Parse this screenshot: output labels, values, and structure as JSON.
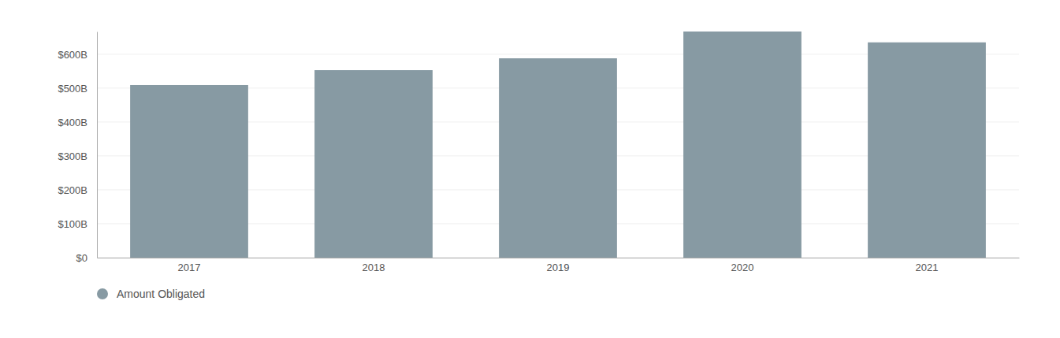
{
  "chart_data": {
    "type": "bar",
    "categories": [
      "2017",
      "2018",
      "2019",
      "2020",
      "2021"
    ],
    "series": [
      {
        "name": "Amount Obligated",
        "color": "#879aa3",
        "values": [
          509,
          553,
          588,
          667,
          635
        ]
      }
    ],
    "ylim": [
      0,
      667
    ],
    "yticks": [
      {
        "value": 0,
        "label": "$0"
      },
      {
        "value": 100,
        "label": "$100B"
      },
      {
        "value": 200,
        "label": "$200B"
      },
      {
        "value": 300,
        "label": "$300B"
      },
      {
        "value": 400,
        "label": "$400B"
      },
      {
        "value": 500,
        "label": "$500B"
      },
      {
        "value": 600,
        "label": "$600B"
      }
    ],
    "grid": true,
    "legend": "bottom-left"
  }
}
